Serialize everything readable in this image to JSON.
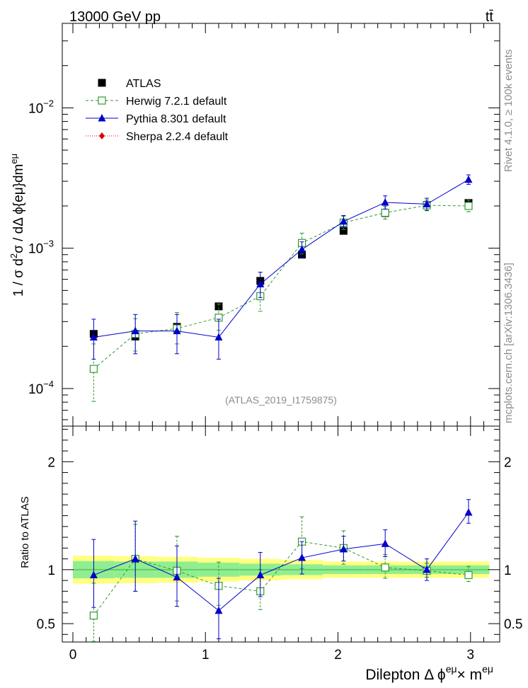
{
  "header": {
    "left_label": "13000 GeV pp",
    "right_label": "tt̄"
  },
  "side_labels": {
    "rivet": "Rivet 4.1.0, ≥ 100k events",
    "mcplots": "mcplots.cern.ch [arXiv:1306.3436]"
  },
  "watermark": "(ATLAS_2019_I1759875)",
  "chart_data": [
    {
      "type": "scatter",
      "panel": "main",
      "yscale": "log",
      "ylabel": "1 / σ d²σ / dΔ ϕ{eμ}dm^eμ",
      "xlabel": "Dilepton Δ ϕ^eμ× m^eμ",
      "xlim": [
        -0.08,
        3.22
      ],
      "ylim": [
        5.4e-05,
        0.04
      ],
      "xticks": [
        0,
        1,
        2,
        3
      ],
      "ytick_labels": [
        {
          "value": 0.0001,
          "mantissa": "10",
          "exp": "−4"
        },
        {
          "value": 0.001,
          "mantissa": "10",
          "exp": "−3"
        },
        {
          "value": 0.01,
          "mantissa": "10",
          "exp": "−2"
        }
      ],
      "legend": {
        "position": "top-left",
        "entries": [
          "ATLAS",
          "Herwig 7.2.1 default",
          "Pythia 8.301 default",
          "Sherpa 2.2.4 default"
        ]
      },
      "x": [
        0.157,
        0.471,
        0.785,
        1.1,
        1.414,
        1.728,
        2.042,
        2.356,
        2.67,
        2.985
      ],
      "series": [
        {
          "name": "ATLAS",
          "color": "#000000",
          "marker": "square-filled",
          "values": [
            0.000245,
            0.000235,
            0.000275,
            0.000385,
            0.000585,
            0.0009,
            0.00133,
            0.00178,
            0.00203,
            0.0021
          ],
          "err": [
            1.2e-05,
            1.2e-05,
            1.4e-05,
            1.8e-05,
            2.6e-05,
            4e-05,
            6e-05,
            8e-05,
            9e-05,
            0.0001
          ]
        },
        {
          "name": "Herwig 7.2.1 default",
          "color": "#339933",
          "marker": "square-open",
          "line": "dashed",
          "values": [
            0.000138,
            0.000245,
            0.000268,
            0.00032,
            0.000455,
            0.00109,
            0.00152,
            0.00179,
            0.00202,
            0.002
          ],
          "err_low": [
            5.7e-05,
            6e-05,
            6e-05,
            6e-05,
            0.0001,
            0.00018,
            0.00016,
            0.00018,
            0.00017,
            0.00018
          ],
          "err_high": [
            7e-05,
            7e-05,
            8e-05,
            8e-05,
            0.00011,
            0.00019,
            0.00017,
            0.00019,
            0.00018,
            0.0002
          ]
        },
        {
          "name": "Pythia 8.301 default",
          "color": "#0000cc",
          "marker": "triangle",
          "line": "solid",
          "values": [
            0.000232,
            0.000257,
            0.000257,
            0.000232,
            0.000555,
            0.00098,
            0.00155,
            0.00212,
            0.00206,
            0.00308
          ],
          "err_low": [
            7e-05,
            8e-05,
            8e-05,
            7e-05,
            0.00011,
            0.00012,
            0.00015,
            0.00022,
            0.0002,
            0.00023
          ],
          "err_high": [
            8e-05,
            8e-05,
            8e-05,
            8e-05,
            0.00012,
            0.00013,
            0.00016,
            0.00024,
            0.00021,
            0.00025
          ]
        },
        {
          "name": "Sherpa 2.2.4 default",
          "color": "#dd0000",
          "marker": "diamond",
          "line": "dotted",
          "values": []
        }
      ]
    },
    {
      "type": "scatter",
      "panel": "ratio",
      "ylabel": "Ratio to ATLAS",
      "xlim": [
        -0.08,
        3.22
      ],
      "ylim": [
        0.33,
        2.33
      ],
      "yticks": [
        0.5,
        1,
        2
      ],
      "x": [
        0.157,
        0.471,
        0.785,
        1.1,
        1.414,
        1.728,
        2.042,
        2.356,
        2.67,
        2.985
      ],
      "band_edges": [
        0.0,
        0.314,
        0.628,
        0.942,
        1.257,
        1.571,
        1.885,
        2.199,
        2.513,
        2.827,
        3.142
      ],
      "band_inner": [
        0.08,
        0.075,
        0.075,
        0.065,
        0.055,
        0.05,
        0.04,
        0.04,
        0.04,
        0.04
      ],
      "band_outer": [
        0.13,
        0.125,
        0.12,
        0.11,
        0.1,
        0.09,
        0.075,
        0.075,
        0.075,
        0.075
      ],
      "series": [
        {
          "name": "Herwig 7.2.1 default",
          "color": "#339933",
          "values": [
            0.575,
            1.1,
            0.99,
            0.85,
            0.8,
            1.26,
            1.2,
            1.02,
            0.99,
            0.95
          ],
          "err_low": [
            0.24,
            0.3,
            0.28,
            0.18,
            0.17,
            0.25,
            0.15,
            0.1,
            0.06,
            0.06
          ],
          "err_high": [
            0.3,
            0.32,
            0.32,
            0.22,
            0.2,
            0.23,
            0.16,
            0.12,
            0.07,
            0.08
          ]
        },
        {
          "name": "Pythia 8.301 default",
          "color": "#0000cc",
          "values": [
            0.95,
            1.1,
            0.93,
            0.62,
            0.95,
            1.11,
            1.19,
            1.24,
            1.0,
            1.53
          ],
          "err_low": [
            0.3,
            0.3,
            0.27,
            0.26,
            0.2,
            0.15,
            0.11,
            0.12,
            0.1,
            0.1
          ],
          "err_high": [
            0.33,
            0.35,
            0.29,
            0.3,
            0.21,
            0.15,
            0.12,
            0.13,
            0.1,
            0.12
          ]
        }
      ]
    }
  ]
}
